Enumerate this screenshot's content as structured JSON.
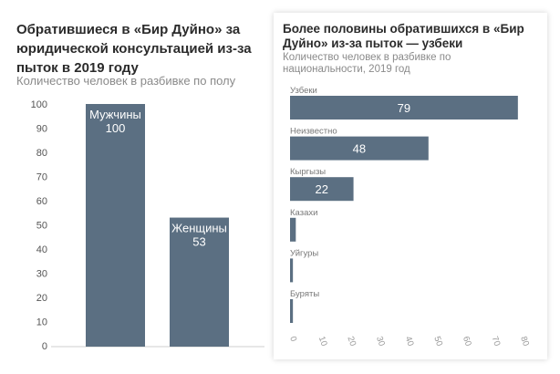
{
  "chart_data": [
    {
      "type": "bar",
      "title": "Обратившиеся в «Бир Дуйно» за юридической консультацией из-за пыток в 2019 году",
      "subtitle": "Количество человек в разбивке по полу",
      "categories": [
        "Мужчины",
        "Женщины"
      ],
      "values": [
        100,
        53
      ],
      "ylim": [
        0,
        100
      ],
      "yticks": [
        0,
        10,
        20,
        30,
        40,
        50,
        60,
        70,
        80,
        90,
        100
      ],
      "grid": false,
      "bar_color": "#5b6f82"
    },
    {
      "type": "bar",
      "orientation": "horizontal",
      "title": "Более половины обратившихся в «Бир Дуйно» из-за пыток — узбеки",
      "subtitle": "Количество человек в разбивке по национальности, 2019 год",
      "categories": [
        "Узбеки",
        "Неизвестно",
        "Кыргызы",
        "Казахи",
        "Уйгуры",
        "Буряты"
      ],
      "values": [
        79,
        48,
        22,
        2,
        1,
        1
      ],
      "value_labels": [
        "79",
        "48",
        "22",
        "",
        "",
        ""
      ],
      "xlim": [
        0,
        80
      ],
      "xticks": [
        0,
        10,
        20,
        30,
        40,
        50,
        60,
        70,
        80
      ],
      "grid": false,
      "bar_color": "#5b6f82"
    }
  ]
}
